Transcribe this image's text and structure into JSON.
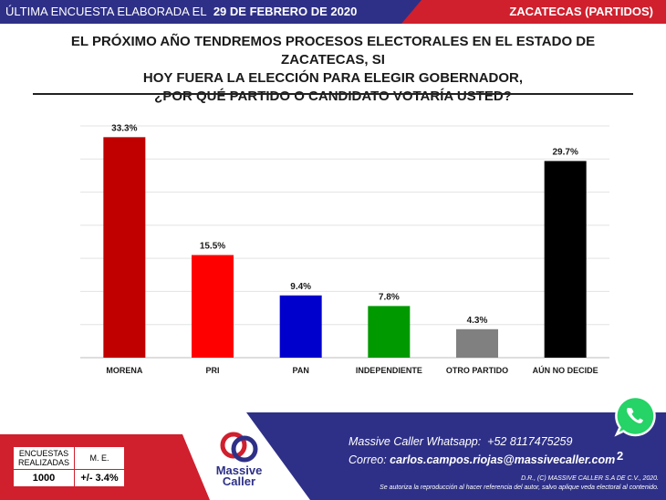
{
  "header": {
    "prefix": "ÚLTIMA ENCUESTA ELABORADA EL",
    "date": "29 DE FEBRERO DE 2020",
    "region": "ZACATECAS (PARTIDOS)"
  },
  "question": {
    "line1": "EL PRÓXIMO AÑO TENDREMOS PROCESOS ELECTORALES EN EL ESTADO DE ZACATECAS, SI",
    "line2": "HOY FUERA LA ELECCIÓN PARA ELEGIR GOBERNADOR,",
    "line3": "¿POR QUÉ PARTIDO O CANDIDATO VOTARÍA USTED?"
  },
  "chart_data": {
    "type": "bar",
    "categories": [
      "MORENA",
      "PRI",
      "PAN",
      "INDEPENDIENTE",
      "OTRO PARTIDO",
      "AÚN NO DECIDE"
    ],
    "values": [
      33.3,
      15.5,
      9.4,
      7.8,
      4.3,
      29.7
    ],
    "value_labels": [
      "33.3%",
      "15.5%",
      "9.4%",
      "7.8%",
      "4.3%",
      "29.7%"
    ],
    "colors": [
      "#c00000",
      "#ff0000",
      "#0000cc",
      "#009900",
      "#808080",
      "#000000"
    ],
    "ylim": [
      0,
      35
    ],
    "grid": true
  },
  "stats": {
    "col1_header": "ENCUESTAS REALIZADAS",
    "col2_header": "M. E.",
    "col1_value": "1000",
    "col2_value": "+/- 3.4%"
  },
  "logo": {
    "line1": "Massive",
    "line2": "Caller"
  },
  "contact": {
    "whatsapp_label": "Massive Caller Whatsapp:",
    "whatsapp_number": "+52 8117475259",
    "email_label": "Correo:",
    "email": "carlos.campos.riojas@massivecaller.com"
  },
  "page_number": "2",
  "legal": {
    "line1": "D.R., (C) MASSIVE CALLER S.A DE C.V., 2020.",
    "line2": "Se autoriza la reproducción al hacer referencia del autor, salvo aplique veda electoral al contenido."
  },
  "colors": {
    "navy": "#2e3087",
    "red": "#d01f2d",
    "whatsapp": "#25d366"
  },
  "icons": {
    "whatsapp": "whatsapp-icon",
    "logo": "massive-caller-logo"
  }
}
